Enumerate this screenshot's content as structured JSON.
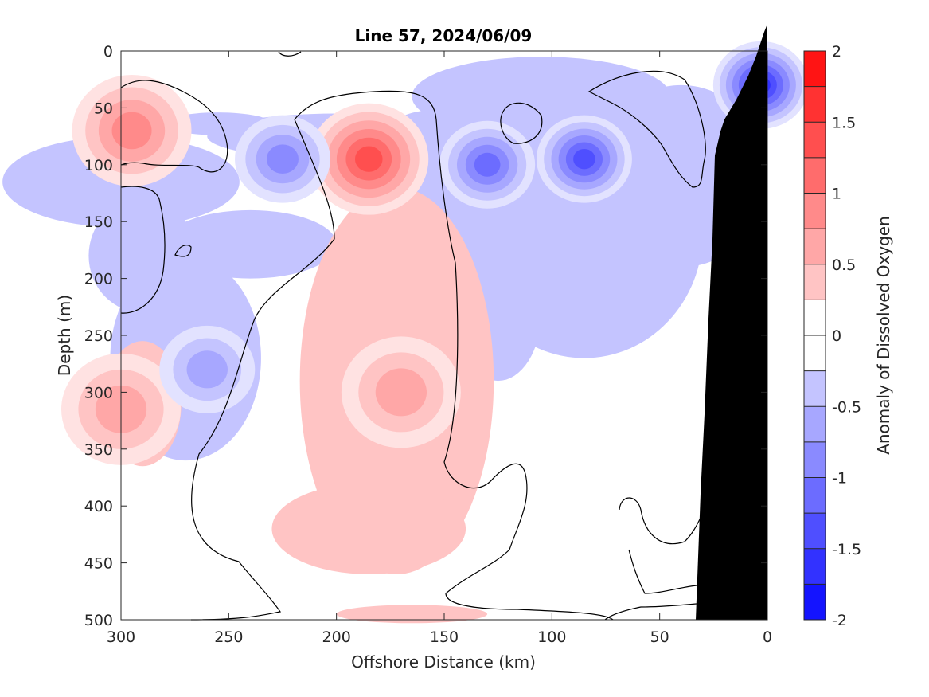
{
  "chart_data": {
    "type": "heatmap",
    "subtype": "filled-contour",
    "title": "Line 57, 2024/06/09",
    "xlabel": "Offshore Distance (km)",
    "ylabel": "Depth (m)",
    "colorbar_label": "Anomaly of Dissolved Oxygen",
    "xlim": [
      300,
      0
    ],
    "ylim": [
      0,
      500
    ],
    "x_reversed": true,
    "y_reversed": true,
    "x_ticks": [
      "300",
      "250",
      "200",
      "150",
      "100",
      "50",
      "0"
    ],
    "y_ticks": [
      "0",
      "50",
      "100",
      "150",
      "200",
      "250",
      "300",
      "350",
      "400",
      "450",
      "500"
    ],
    "colorbar_ticks": [
      "2",
      "1.5",
      "1",
      "0.5",
      "0",
      "-0.5",
      "-1",
      "-1.5",
      "-2"
    ],
    "colorbar_range": [
      -2,
      2
    ],
    "contour_step": 0.25,
    "zero_contour_drawn": true,
    "features": [
      {
        "kind": "positive",
        "x_km": 185,
        "depth_m": 95,
        "peak": 1.4
      },
      {
        "kind": "positive",
        "x_km": 170,
        "depth_m": 300,
        "peak": 0.7
      },
      {
        "kind": "positive",
        "x_km": 295,
        "depth_m": 70,
        "peak": 1.1
      },
      {
        "kind": "positive",
        "x_km": 300,
        "depth_m": 315,
        "peak": 0.8
      },
      {
        "kind": "negative",
        "x_km": 85,
        "depth_m": 95,
        "peak": -1.6
      },
      {
        "kind": "negative",
        "x_km": 130,
        "depth_m": 100,
        "peak": -1.2
      },
      {
        "kind": "negative",
        "x_km": 3,
        "depth_m": 30,
        "peak": -1.7
      },
      {
        "kind": "negative",
        "x_km": 225,
        "depth_m": 95,
        "peak": -0.9
      },
      {
        "kind": "negative",
        "x_km": 260,
        "depth_m": 280,
        "peak": -0.7
      }
    ],
    "bathymetry": "seafloor shown in black near 0–35 km offshore"
  },
  "colors": {
    "positive_max": "#ff0000",
    "negative_max": "#0000ff",
    "seafloor": "#000000",
    "zero_band": "#ffffff"
  }
}
